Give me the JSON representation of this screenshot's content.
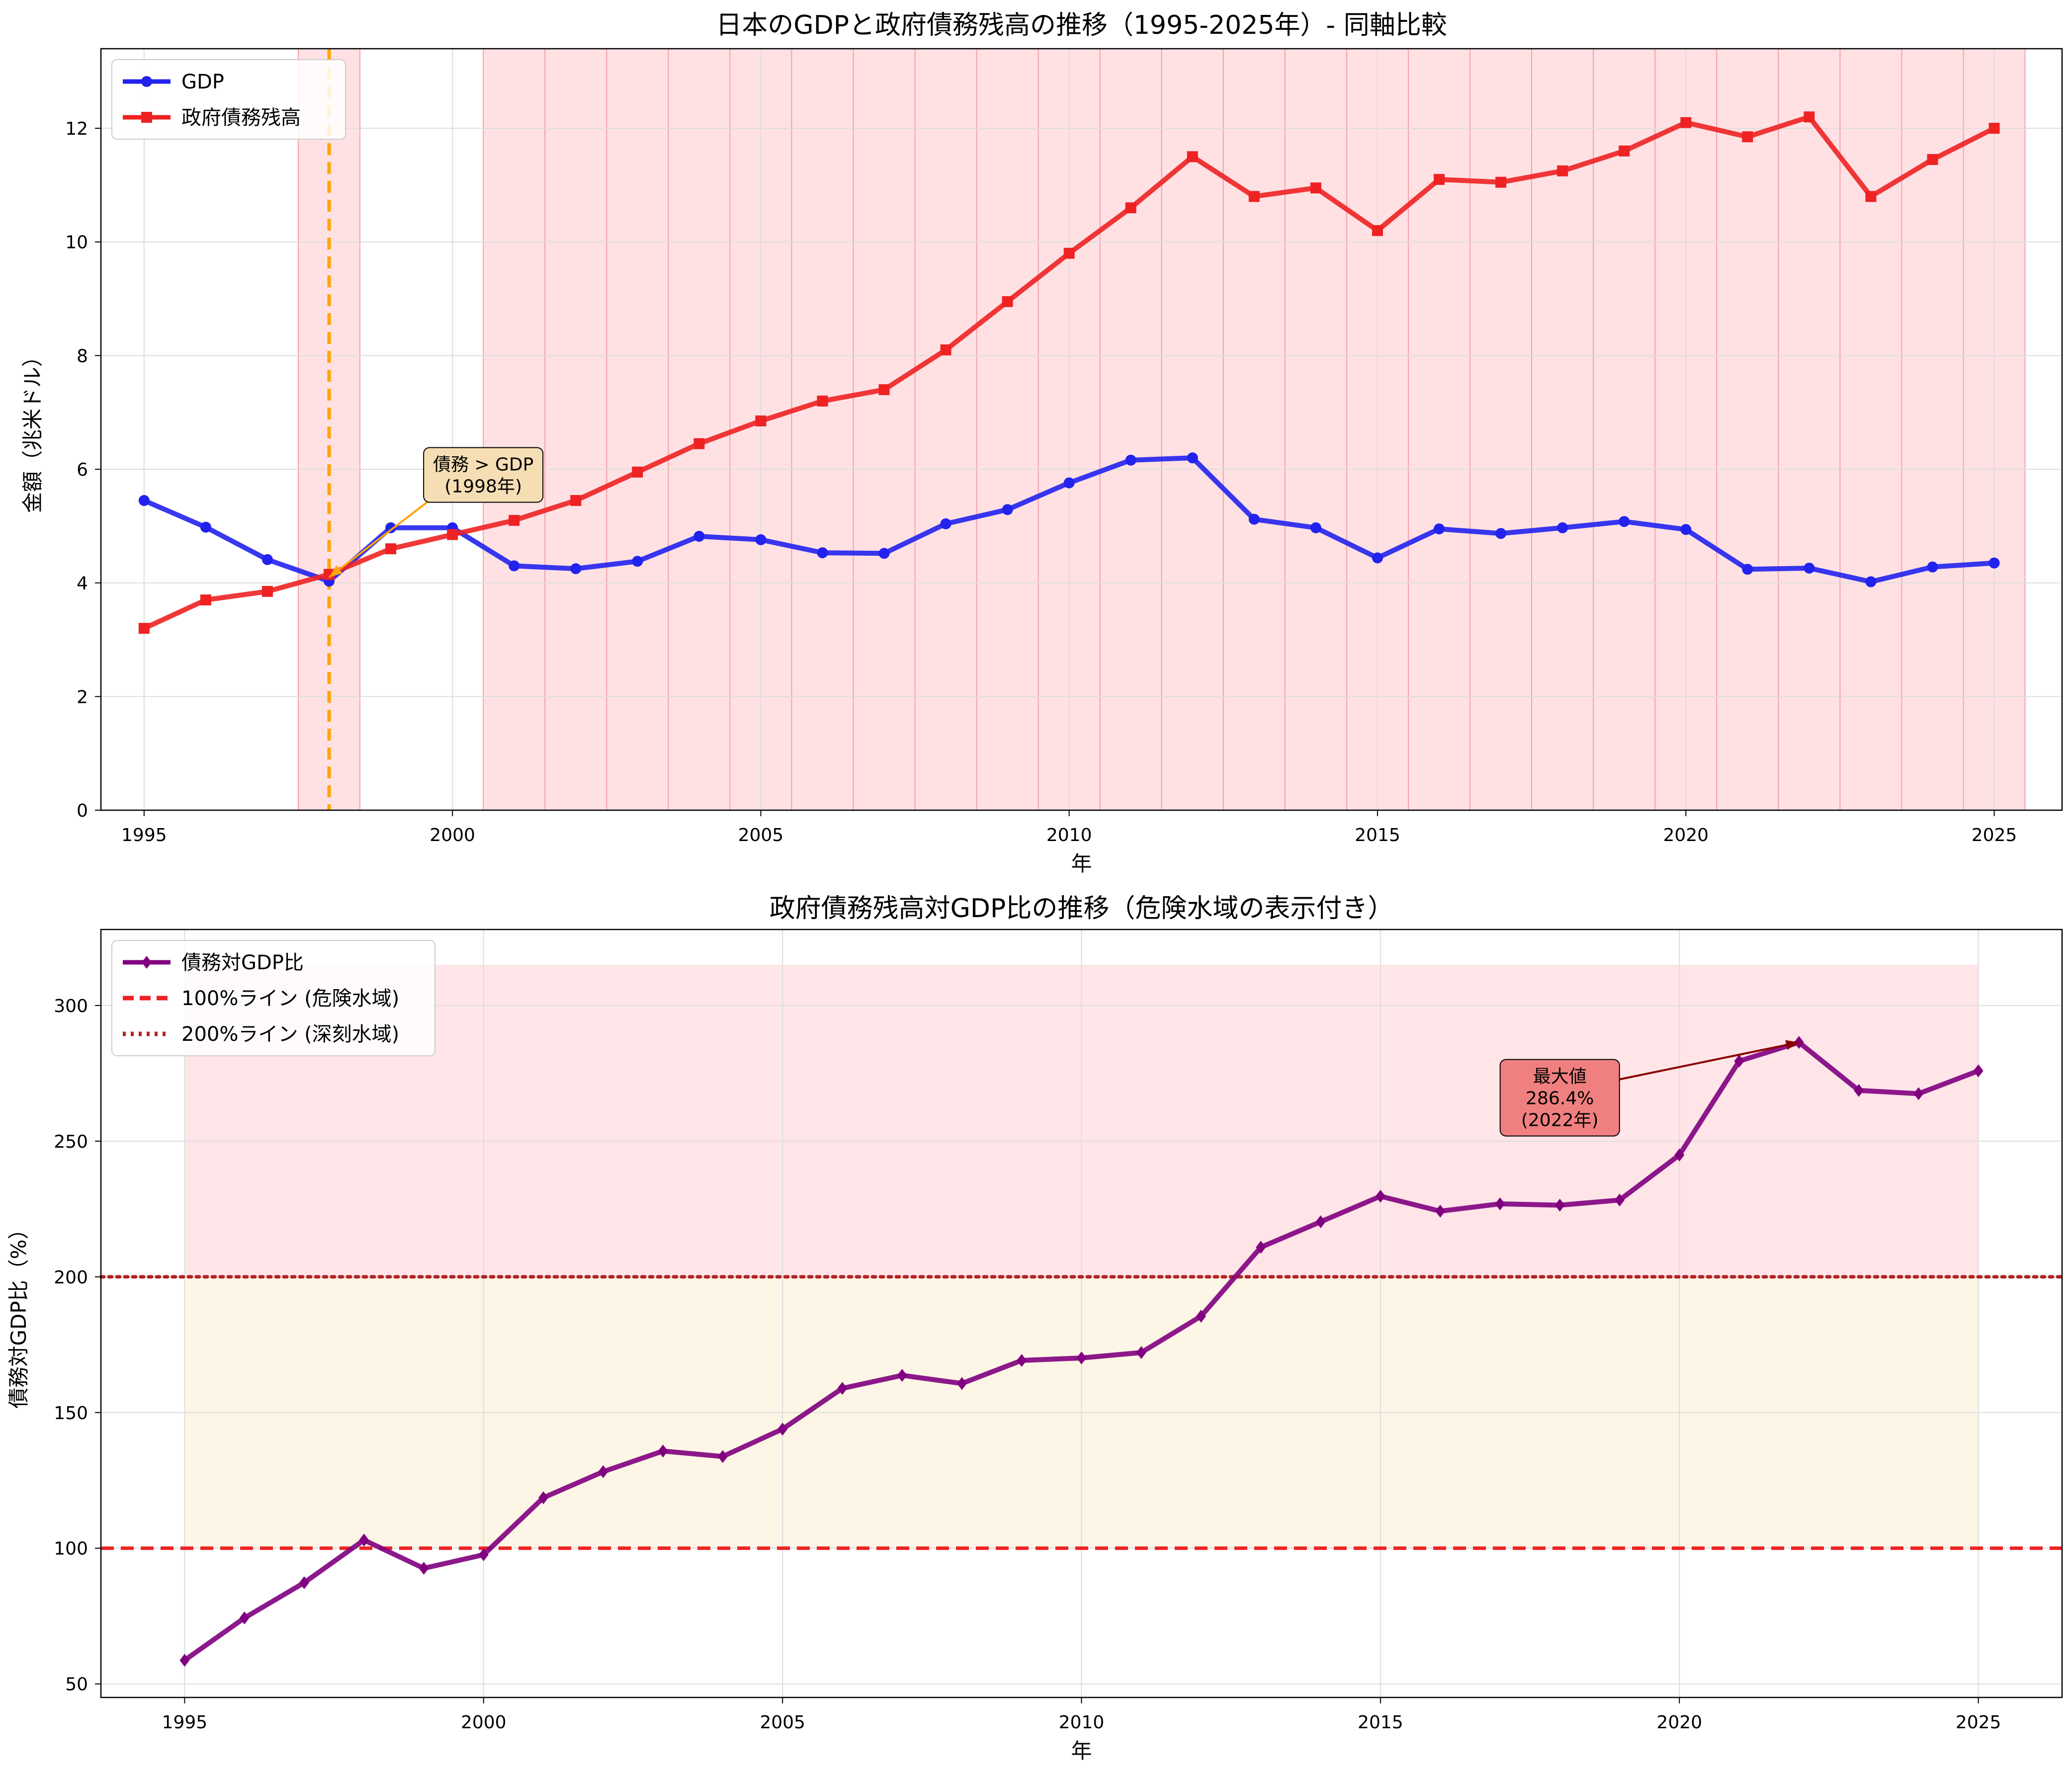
{
  "chart_data": [
    {
      "type": "line",
      "title": "日本のGDPと政府債務残高の推移（1995-2025年）- 同軸比較",
      "xlabel": "年",
      "ylabel": "金額（兆米ドル）",
      "xlim": [
        1994.3,
        2026.1
      ],
      "ylim": [
        0,
        13.4
      ],
      "xticks": [
        "1995",
        "2000",
        "2005",
        "2010",
        "2015",
        "2020",
        "2025"
      ],
      "yticks": [
        "0",
        "2",
        "4",
        "6",
        "8",
        "10",
        "12"
      ],
      "grid": true,
      "legend_position": "top-left",
      "x": [
        1995,
        1996,
        1997,
        1998,
        1999,
        2000,
        2001,
        2002,
        2003,
        2004,
        2005,
        2006,
        2007,
        2008,
        2009,
        2010,
        2011,
        2012,
        2013,
        2014,
        2015,
        2016,
        2017,
        2018,
        2019,
        2020,
        2021,
        2022,
        2023,
        2024,
        2025
      ],
      "series": [
        {
          "name": "GDP",
          "color": "#2222ee",
          "marker": "circle",
          "values": [
            5.45,
            4.98,
            4.41,
            4.03,
            4.97,
            4.97,
            4.3,
            4.25,
            4.38,
            4.82,
            4.76,
            4.53,
            4.52,
            5.04,
            5.29,
            5.76,
            6.16,
            6.2,
            5.12,
            4.97,
            4.44,
            4.95,
            4.87,
            4.97,
            5.08,
            4.94,
            4.24,
            4.26,
            4.02,
            4.28,
            4.35
          ]
        },
        {
          "name": "政府債務残高",
          "color": "#ee2222",
          "marker": "square",
          "values": [
            3.2,
            3.7,
            3.85,
            4.15,
            4.6,
            4.85,
            5.1,
            5.45,
            5.95,
            6.45,
            6.85,
            7.2,
            7.4,
            8.1,
            8.95,
            9.8,
            10.6,
            11.5,
            10.8,
            10.95,
            10.2,
            11.1,
            11.05,
            11.25,
            11.6,
            12.1,
            11.85,
            12.2,
            10.8,
            11.45,
            12.0
          ]
        }
      ],
      "shaded_years": [
        1998,
        2001,
        2002,
        2003,
        2004,
        2005,
        2006,
        2007,
        2008,
        2009,
        2010,
        2011,
        2012,
        2013,
        2014,
        2015,
        2016,
        2017,
        2018,
        2019,
        2020,
        2021,
        2022,
        2023,
        2024,
        2025
      ],
      "shade_color": "#ffe1e4",
      "crossover_year": 1998,
      "crossover_line_color": "#ffa500",
      "annotation": {
        "text_lines": [
          "債務 > GDP",
          "(1998年)"
        ],
        "x": 1998,
        "y": 4.1,
        "text_x": 2000.5,
        "text_y": 5.9
      }
    },
    {
      "type": "line",
      "title": "政府債務残高対GDP比の推移（危険水域の表示付き）",
      "xlabel": "年",
      "ylabel": "債務対GDP比（%）",
      "xlim": [
        1993.6,
        2026.4
      ],
      "ylim": [
        45,
        328
      ],
      "xticks": [
        "1995",
        "2000",
        "2005",
        "2010",
        "2015",
        "2020",
        "2025"
      ],
      "yticks": [
        "50",
        "100",
        "150",
        "200",
        "250",
        "300"
      ],
      "grid": true,
      "legend_position": "top-left",
      "x": [
        1995,
        1996,
        1997,
        1998,
        1999,
        2000,
        2001,
        2002,
        2003,
        2004,
        2005,
        2006,
        2007,
        2008,
        2009,
        2010,
        2011,
        2012,
        2013,
        2014,
        2015,
        2016,
        2017,
        2018,
        2019,
        2020,
        2021,
        2022,
        2023,
        2024,
        2025
      ],
      "series": [
        {
          "name": "債務対GDP比",
          "color": "#800080",
          "marker": "diamond",
          "values": [
            58.7,
            74.3,
            87.3,
            103.0,
            92.6,
            97.6,
            118.6,
            128.2,
            135.8,
            133.8,
            143.9,
            158.9,
            163.7,
            160.7,
            169.2,
            170.1,
            172.1,
            185.5,
            210.9,
            220.3,
            229.7,
            224.2,
            226.9,
            226.4,
            228.3,
            244.9,
            279.5,
            286.4,
            268.7,
            267.5,
            275.9
          ]
        }
      ],
      "reference_lines": [
        {
          "name": "100%ライン (危険水域)",
          "value": 100,
          "color": "#ee2222",
          "style": "dashed"
        },
        {
          "name": "200%ライン (深刻水域)",
          "value": 200,
          "color": "#b22222",
          "style": "dotted"
        }
      ],
      "zones": [
        {
          "from": 100,
          "to": 200,
          "color": "#fdf3e1"
        },
        {
          "from": 200,
          "to": 315,
          "color": "#ffe1e4"
        }
      ],
      "annotation": {
        "text_lines": [
          "最大値",
          "286.4%",
          "(2022年)"
        ],
        "x": 2022,
        "y": 286.4,
        "text_x": 2018,
        "text_y": 266,
        "fill": "#f08080"
      }
    }
  ]
}
